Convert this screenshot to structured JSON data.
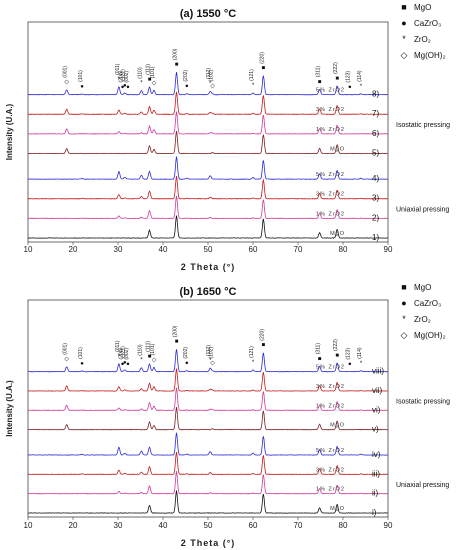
{
  "legend": {
    "items": [
      {
        "symbol": "■",
        "label": "MgO"
      },
      {
        "symbol": "●",
        "label": "CaZrO₃"
      },
      {
        "symbol": "*",
        "label": "ZrO₂"
      },
      {
        "symbol": "◇",
        "label": "Mg(OH)₂"
      }
    ]
  },
  "colors": {
    "blue": "#2b2bd6",
    "red": "#c41b1b",
    "pink": "#d13a9a",
    "brown": "#7a1f1f",
    "black": "#111111"
  },
  "chart_data": [
    {
      "type": "line",
      "title": "(a) 1550 °C",
      "xlabel": "2 Theta (°)",
      "ylabel": "Intensity (U.A.)",
      "xlim": [
        10,
        90
      ],
      "x_ticks": [
        "10",
        "20",
        "30",
        "40",
        "50",
        "60",
        "70",
        "80",
        "90"
      ],
      "groups": [
        {
          "name": "Isostatic pressing",
          "series_ids": [
            "8)",
            "7)",
            "6)",
            "5)"
          ]
        },
        {
          "name": "Uniaxial pressing",
          "series_ids": [
            "4)",
            "3)",
            "2)",
            "1)"
          ]
        }
      ],
      "series": [
        {
          "id": "8)",
          "name": "5% ZrO2",
          "color": "blue"
        },
        {
          "id": "7)",
          "name": "3% ZrO2",
          "color": "red"
        },
        {
          "id": "6)",
          "name": "1% ZrO2",
          "color": "pink"
        },
        {
          "id": "5)",
          "name": "MgO",
          "color": "brown"
        },
        {
          "id": "4)",
          "name": "5% ZrO2",
          "color": "blue"
        },
        {
          "id": "3)",
          "name": "3% ZrO2",
          "color": "red"
        },
        {
          "id": "2)",
          "name": "1% ZrO2",
          "color": "pink"
        },
        {
          "id": "1)",
          "name": "MgO",
          "color": "black"
        }
      ],
      "annotations": [
        {
          "x": 18.6,
          "label": "(001)",
          "phase": "Mg(OH)2"
        },
        {
          "x": 22.0,
          "label": "(101)",
          "phase": "CaZrO3"
        },
        {
          "x": 30.2,
          "label": "(011)",
          "phase": "ZrO2"
        },
        {
          "x": 31.0,
          "label": "(200)",
          "phase": "CaZrO3"
        },
        {
          "x": 31.5,
          "label": "(121)",
          "phase": "CaZrO3"
        },
        {
          "x": 32.2,
          "label": "(002)",
          "phase": "CaZrO3"
        },
        {
          "x": 35.2,
          "label": "(110)",
          "phase": "ZrO2"
        },
        {
          "x": 37.0,
          "label": "(111)",
          "phase": "MgO"
        },
        {
          "x": 38.0,
          "label": "(101)",
          "phase": "Mg(OH)2"
        },
        {
          "x": 43.0,
          "label": "(200)",
          "phase": "MgO"
        },
        {
          "x": 45.3,
          "label": "(202)",
          "phase": "CaZrO3"
        },
        {
          "x": 50.5,
          "label": "(112)",
          "phase": "ZrO2"
        },
        {
          "x": 51.0,
          "label": "(102)",
          "phase": "Mg(OH)2"
        },
        {
          "x": 60.0,
          "label": "(121)",
          "phase": "ZrO2"
        },
        {
          "x": 62.3,
          "label": "(220)",
          "phase": "MgO"
        },
        {
          "x": 74.8,
          "label": "(311)",
          "phase": "MgO"
        },
        {
          "x": 78.7,
          "label": "(222)",
          "phase": "MgO"
        },
        {
          "x": 81.5,
          "label": "(123)",
          "phase": "CaZrO3"
        },
        {
          "x": 84.0,
          "label": "(114)",
          "phase": "ZrO2"
        }
      ]
    },
    {
      "type": "line",
      "title": "(b) 1650 °C",
      "xlabel": "2 Theta (°)",
      "ylabel": "Intensity (U.A.)",
      "xlim": [
        10,
        90
      ],
      "x_ticks": [
        "10",
        "20",
        "30",
        "40",
        "50",
        "60",
        "70",
        "80",
        "90"
      ],
      "groups": [
        {
          "name": "Isostatic pressing",
          "series_ids": [
            "viii)",
            "vii)",
            "vi)",
            "v)"
          ]
        },
        {
          "name": "Uniaxial pressing",
          "series_ids": [
            "iv)",
            "iii)",
            "ii)",
            "i)"
          ]
        }
      ],
      "series": [
        {
          "id": "viii)",
          "name": "5% ZrO2",
          "color": "blue"
        },
        {
          "id": "vii)",
          "name": "3% ZrO2",
          "color": "red"
        },
        {
          "id": "vi)",
          "name": "1% ZrO2",
          "color": "pink"
        },
        {
          "id": "v)",
          "name": "MgO",
          "color": "brown"
        },
        {
          "id": "iv)",
          "name": "5% ZrO2",
          "color": "blue"
        },
        {
          "id": "iii)",
          "name": "3% ZrO2",
          "color": "red"
        },
        {
          "id": "ii)",
          "name": "1% ZrO2",
          "color": "pink"
        },
        {
          "id": "i)",
          "name": "MgO",
          "color": "black"
        }
      ],
      "annotations": [
        {
          "x": 18.6,
          "label": "(001)",
          "phase": "Mg(OH)2"
        },
        {
          "x": 22.0,
          "label": "(101)",
          "phase": "CaZrO3"
        },
        {
          "x": 30.2,
          "label": "(011)",
          "phase": "ZrO2"
        },
        {
          "x": 31.0,
          "label": "(200)",
          "phase": "CaZrO3"
        },
        {
          "x": 31.5,
          "label": "(121)",
          "phase": "CaZrO3"
        },
        {
          "x": 32.2,
          "label": "(002)",
          "phase": "CaZrO3"
        },
        {
          "x": 35.2,
          "label": "(110)",
          "phase": "ZrO2"
        },
        {
          "x": 37.0,
          "label": "(111)",
          "phase": "MgO"
        },
        {
          "x": 38.0,
          "label": "(101)",
          "phase": "Mg(OH)2"
        },
        {
          "x": 43.0,
          "label": "(200)",
          "phase": "MgO"
        },
        {
          "x": 45.3,
          "label": "(202)",
          "phase": "CaZrO3"
        },
        {
          "x": 50.5,
          "label": "(112)",
          "phase": "ZrO2"
        },
        {
          "x": 51.0,
          "label": "(102)",
          "phase": "Mg(OH)2"
        },
        {
          "x": 60.0,
          "label": "(121)",
          "phase": "ZrO2"
        },
        {
          "x": 62.3,
          "label": "(220)",
          "phase": "MgO"
        },
        {
          "x": 74.8,
          "label": "(311)",
          "phase": "MgO"
        },
        {
          "x": 78.7,
          "label": "(222)",
          "phase": "MgO"
        },
        {
          "x": 81.5,
          "label": "(123)",
          "phase": "CaZrO3"
        },
        {
          "x": 84.0,
          "label": "(114)",
          "phase": "ZrO2"
        }
      ]
    }
  ]
}
